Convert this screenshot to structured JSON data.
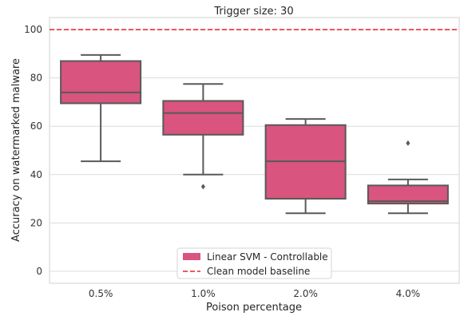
{
  "chart_data": {
    "type": "box",
    "title": "Trigger size: 30",
    "xlabel": "Poison percentage",
    "ylabel": "Accuracy on watermarked malware",
    "categories": [
      "0.5%",
      "1.0%",
      "2.0%",
      "4.0%"
    ],
    "ylim": [
      -5,
      105
    ],
    "yticks": [
      0,
      20,
      40,
      60,
      80,
      100
    ],
    "grid": "horizontal",
    "legend_position": "bottom-center",
    "series": [
      {
        "name": "Linear SVM - Controllable",
        "color": "#d9547e",
        "boxes": [
          {
            "whisker_low": 45.5,
            "q1": 69.5,
            "median": 74,
            "q3": 87,
            "whisker_high": 89.5,
            "outliers": []
          },
          {
            "whisker_low": 40,
            "q1": 56.5,
            "median": 65.5,
            "q3": 70.5,
            "whisker_high": 77.5,
            "outliers": [
              35
            ]
          },
          {
            "whisker_low": 24,
            "q1": 30,
            "median": 45.5,
            "q3": 60.5,
            "whisker_high": 63,
            "outliers": []
          },
          {
            "whisker_low": 24,
            "q1": 28,
            "median": 29,
            "q3": 35.5,
            "whisker_high": 38,
            "outliers": [
              53
            ]
          }
        ]
      }
    ],
    "reference_lines": [
      {
        "name": "Clean model baseline",
        "y": 100,
        "color": "#e8202a",
        "style": "dashed"
      }
    ]
  }
}
